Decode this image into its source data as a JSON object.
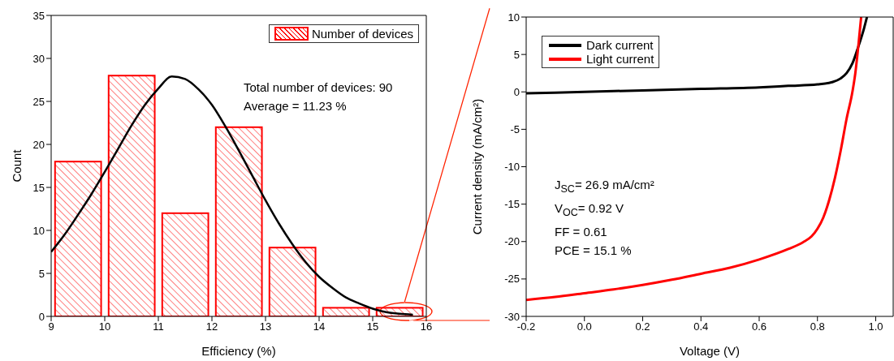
{
  "chart_data": [
    {
      "type": "histogram",
      "xlabel": "Efficiency (%)",
      "ylabel": "Count",
      "bins": [
        9,
        10,
        11,
        12,
        13,
        14,
        15,
        16
      ],
      "series": [
        {
          "type": "histogram",
          "name": "Number of devices",
          "color": "#ff0000",
          "values": [
            18,
            28,
            12,
            22,
            8,
            1,
            1
          ]
        },
        {
          "type": "line",
          "color": "#000000",
          "x": [
            9,
            9.25,
            9.5,
            9.75,
            10,
            10.25,
            10.5,
            10.75,
            11,
            11.25,
            11.5,
            11.75,
            12,
            12.25,
            12.5,
            12.75,
            13,
            13.25,
            13.5,
            13.75,
            14,
            14.25,
            14.5,
            14.75,
            15,
            15.25,
            15.5,
            15.75
          ],
          "values": [
            7.5,
            9.5,
            11.8,
            14.2,
            16.8,
            19.5,
            22.2,
            24.6,
            26.5,
            27.9,
            27.6,
            26.4,
            24.6,
            22.1,
            19.3,
            16.4,
            13.5,
            10.8,
            8.4,
            6.3,
            4.6,
            3.3,
            2.2,
            1.5,
            0.9,
            0.5,
            0.3,
            0.2
          ]
        }
      ],
      "xlim": [
        9,
        16
      ],
      "xticks": [
        9,
        10,
        11,
        12,
        13,
        14,
        15,
        16
      ],
      "ylim": [
        0,
        35
      ],
      "yticks": [
        0,
        5,
        10,
        15,
        20,
        25,
        30,
        35
      ],
      "legend": "top right",
      "annotations": [
        "Total number of devices: 90",
        "Average = 11.23 %"
      ]
    },
    {
      "type": "line",
      "xlabel": "Voltage (V)",
      "ylabel": "Current density (mA/cm²)",
      "series": [
        {
          "name": "Dark current",
          "color": "#000000",
          "x": [
            -0.2,
            0,
            0.2,
            0.4,
            0.6,
            0.7,
            0.8,
            0.85,
            0.88,
            0.9,
            0.92,
            0.94,
            0.96,
            0.97
          ],
          "values": [
            -0.2,
            0,
            0.2,
            0.4,
            0.6,
            0.8,
            1.0,
            1.3,
            1.8,
            2.5,
            3.8,
            6.0,
            8.5,
            10
          ]
        },
        {
          "name": "Light current",
          "color": "#ff0000",
          "x": [
            -0.2,
            -0.1,
            0,
            0.1,
            0.2,
            0.3,
            0.4,
            0.5,
            0.6,
            0.7,
            0.75,
            0.78,
            0.8,
            0.82,
            0.84,
            0.86,
            0.88,
            0.9,
            0.92,
            0.93,
            0.94,
            0.95
          ],
          "values": [
            -27.8,
            -27.4,
            -26.9,
            -26.4,
            -25.8,
            -25.1,
            -24.3,
            -23.5,
            -22.4,
            -21.0,
            -20.1,
            -19.3,
            -18.3,
            -16.8,
            -14.5,
            -11.5,
            -7.8,
            -3.6,
            0,
            2.5,
            6,
            10
          ]
        }
      ],
      "xlim": [
        -0.2,
        1.06
      ],
      "xticks": [
        -0.2,
        {
          "value": 0,
          "label": "0.0"
        },
        0.2,
        0.4,
        0.6,
        0.8,
        {
          "value": 1,
          "label": "1.0"
        }
      ],
      "ylim": [
        -30,
        10
      ],
      "yticks": [
        -30,
        -25,
        -20,
        -15,
        -10,
        -5,
        0,
        5,
        10
      ],
      "legend": "top left",
      "annotations": [
        "J$_{SC}$= 26.9 mA/cm²",
        "V$_{OC}$= 0.92 V",
        "FF = 0.61",
        "PCE = 15.1 %"
      ]
    }
  ]
}
